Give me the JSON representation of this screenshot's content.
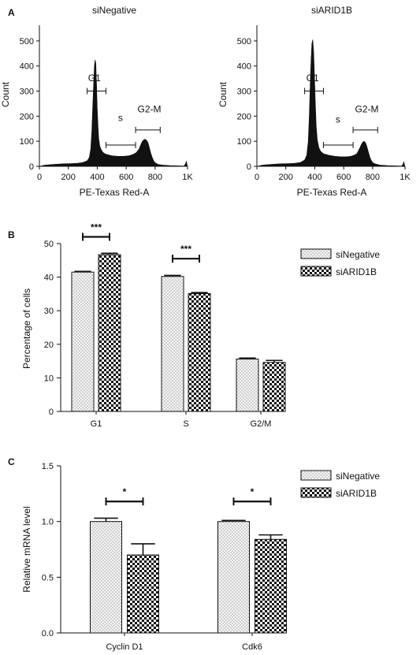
{
  "colors": {
    "ink": "#111111",
    "paper": "#ffffff"
  },
  "chart_data": [
    {
      "panel": "A",
      "type": "area",
      "title": "siNegative",
      "xlabel": "PE-Texas Red-A",
      "ylabel": "Count",
      "xlim": [
        0,
        1024
      ],
      "ylim": [
        0,
        550
      ],
      "x_ticks": [
        0,
        200,
        400,
        600,
        800,
        1024
      ],
      "x_tick_labels": [
        "0",
        "200",
        "400",
        "600",
        "800",
        "1K"
      ],
      "y_ticks": [
        0,
        100,
        200,
        300,
        400,
        500
      ],
      "histogram": {
        "x": [
          0,
          40,
          100,
          160,
          220,
          260,
          300,
          330,
          345,
          355,
          362,
          368,
          374,
          380,
          385,
          390,
          395,
          400,
          405,
          410,
          418,
          428,
          440,
          460,
          500,
          540,
          580,
          620,
          650,
          670,
          690,
          700,
          710,
          720,
          730,
          740,
          750,
          760,
          770,
          780,
          790,
          800,
          820,
          850,
          900,
          960,
          1000,
          1010,
          1016,
          1020,
          1024
        ],
        "y": [
          0,
          5,
          8,
          10,
          11,
          12,
          15,
          22,
          35,
          70,
          140,
          230,
          320,
          400,
          425,
          410,
          330,
          230,
          160,
          110,
          80,
          65,
          55,
          48,
          42,
          40,
          40,
          42,
          48,
          55,
          70,
          85,
          98,
          105,
          108,
          104,
          95,
          75,
          52,
          35,
          22,
          14,
          8,
          5,
          3,
          2,
          1,
          10,
          20,
          8,
          0
        ]
      },
      "gates": [
        {
          "label": "G1",
          "x_range": [
            330,
            460
          ],
          "y": 300,
          "label_pos": [
            380,
            340
          ]
        },
        {
          "label": "s",
          "x_range": [
            460,
            665
          ],
          "y": 85,
          "label_pos": [
            560,
            180
          ]
        },
        {
          "label": "G2-M",
          "x_range": [
            665,
            835
          ],
          "y": 145,
          "label_pos": [
            760,
            215
          ]
        }
      ]
    },
    {
      "panel": "A",
      "type": "area",
      "title": "siARID1B",
      "xlabel": "PE-Texas Red-A",
      "ylabel": "Count",
      "xlim": [
        0,
        1024
      ],
      "ylim": [
        0,
        550
      ],
      "x_ticks": [
        0,
        200,
        400,
        600,
        800,
        1024
      ],
      "x_tick_labels": [
        "0",
        "200",
        "400",
        "600",
        "800",
        "1K"
      ],
      "y_ticks": [
        0,
        100,
        200,
        300,
        400,
        500
      ],
      "histogram": {
        "x": [
          0,
          40,
          100,
          160,
          220,
          260,
          300,
          330,
          345,
          355,
          362,
          368,
          374,
          380,
          386,
          392,
          398,
          404,
          410,
          418,
          428,
          440,
          460,
          500,
          540,
          580,
          620,
          650,
          670,
          690,
          700,
          710,
          720,
          730,
          740,
          750,
          760,
          770,
          780,
          790,
          800,
          820,
          850,
          900,
          960,
          1000,
          1010,
          1016,
          1020,
          1024
        ],
        "y": [
          0,
          5,
          8,
          10,
          11,
          12,
          15,
          25,
          45,
          100,
          200,
          320,
          420,
          490,
          505,
          460,
          360,
          250,
          160,
          105,
          75,
          60,
          50,
          44,
          40,
          38,
          38,
          40,
          44,
          50,
          60,
          72,
          85,
          95,
          100,
          95,
          80,
          58,
          38,
          24,
          15,
          9,
          5,
          3,
          2,
          1,
          8,
          18,
          6,
          0
        ]
      },
      "gates": [
        {
          "label": "G1",
          "x_range": [
            330,
            460
          ],
          "y": 300,
          "label_pos": [
            385,
            340
          ]
        },
        {
          "label": "s",
          "x_range": [
            460,
            665
          ],
          "y": 85,
          "label_pos": [
            560,
            175
          ]
        },
        {
          "label": "G2-M",
          "x_range": [
            665,
            835
          ],
          "y": 145,
          "label_pos": [
            760,
            215
          ]
        }
      ]
    },
    {
      "panel": "B",
      "type": "bar",
      "categories": [
        "G1",
        "S",
        "G2/M"
      ],
      "ylabel": "Percentage of cells",
      "ylim": [
        0,
        50
      ],
      "y_ticks": [
        0,
        10,
        20,
        30,
        40,
        50
      ],
      "legend": "top-right",
      "series": [
        {
          "name": "siNegative",
          "pattern": "dots",
          "values": [
            41.5,
            40.2,
            15.6
          ],
          "errors": [
            0.2,
            0.3,
            0.3
          ]
        },
        {
          "name": "siARID1B",
          "pattern": "checker",
          "values": [
            46.7,
            35.1,
            14.6
          ],
          "errors": [
            0.4,
            0.3,
            0.6
          ]
        }
      ],
      "significance": [
        {
          "category": 0,
          "label": "***",
          "y": 52
        },
        {
          "category": 1,
          "label": "***",
          "y": 45.5
        }
      ]
    },
    {
      "panel": "C",
      "type": "bar",
      "categories": [
        "Cyclin D1",
        "Cdk6"
      ],
      "ylabel": "Relative mRNA level",
      "ylim": [
        0,
        1.5
      ],
      "y_ticks": [
        0,
        0.5,
        1.0,
        1.5
      ],
      "y_tick_labels": [
        "0.0",
        "0.5",
        "1.0",
        "1.5"
      ],
      "legend": "top-right",
      "series": [
        {
          "name": "siNegative",
          "pattern": "dots",
          "values": [
            1.0,
            1.0
          ],
          "errors": [
            0.03,
            0.01
          ]
        },
        {
          "name": "siARID1B",
          "pattern": "checker",
          "values": [
            0.7,
            0.84
          ],
          "errors": [
            0.1,
            0.04
          ]
        }
      ],
      "significance": [
        {
          "category": 0,
          "label": "*",
          "y": 1.18
        },
        {
          "category": 1,
          "label": "*",
          "y": 1.18
        }
      ]
    }
  ],
  "panel_letters": [
    "A",
    "B",
    "C"
  ]
}
